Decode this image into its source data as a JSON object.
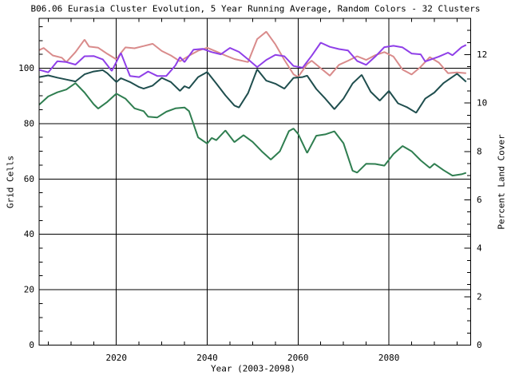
{
  "window": {
    "background": "#ffffff",
    "text_color": "#000000"
  },
  "chart_data": {
    "type": "line",
    "title": "B06.06 Eurasia Cluster Evolution, 5 Year Running Average, Random Colors - 32 Clusters",
    "xlabel": "Year (2003-2098)",
    "ylabel_left": "Grid Cells",
    "ylabel_right": "Percent Land Cover",
    "x_range": [
      2003,
      2098
    ],
    "y_left_range": [
      0,
      118
    ],
    "y_right_range": [
      0,
      13.5
    ],
    "x_major_ticks": [
      2020,
      2040,
      2060,
      2080
    ],
    "x_minor_step": 5,
    "y_left_major_ticks": [
      0,
      20,
      40,
      60,
      80,
      100
    ],
    "y_left_minor_step": 5,
    "y_right_major_ticks": [
      0,
      2,
      4,
      6,
      8,
      10,
      12
    ],
    "y_right_minor_step": 0.5,
    "grid": {
      "vertical_at": [
        2020,
        2040,
        2060,
        2080
      ],
      "horizontal_at": [
        20,
        40,
        60,
        80,
        100
      ]
    },
    "axis_color": "#000000",
    "legend": "none",
    "series": [
      {
        "name": "salmon",
        "color": "#D98B8B",
        "axis": "left",
        "x": [
          2003,
          2004,
          2006,
          2008,
          2009,
          2011,
          2013,
          2014,
          2016,
          2018,
          2020,
          2021,
          2022,
          2024,
          2026,
          2028,
          2030,
          2032,
          2034,
          2036,
          2038,
          2040,
          2042,
          2044,
          2046,
          2049,
          2051,
          2053,
          2055,
          2057,
          2059,
          2060,
          2062,
          2063,
          2065,
          2067,
          2069,
          2071,
          2073,
          2075,
          2077,
          2079,
          2081,
          2083,
          2085,
          2087,
          2089,
          2091,
          2093,
          2095,
          2097
        ],
        "values": [
          106.5,
          107.3,
          104.6,
          103.8,
          102.2,
          105.8,
          110.3,
          107.8,
          107.4,
          105.2,
          103.2,
          105.5,
          107.5,
          107.2,
          108.0,
          108.8,
          106.2,
          104.6,
          102.5,
          104.5,
          106.3,
          107.4,
          106.0,
          104.6,
          103.3,
          102.2,
          110.5,
          113.2,
          108.6,
          103.0,
          97.8,
          96.8,
          101.5,
          102.7,
          100.0,
          97.3,
          101.2,
          102.7,
          104.3,
          103.0,
          104.7,
          105.8,
          104.2,
          99.5,
          97.7,
          100.5,
          104.0,
          102.0,
          98.2,
          98.5,
          98.2
        ]
      },
      {
        "name": "violet",
        "color": "#8F3FE8",
        "axis": "left",
        "x": [
          2003,
          2005,
          2007,
          2009,
          2011,
          2013,
          2015,
          2017,
          2019,
          2021,
          2023,
          2025,
          2027,
          2029,
          2031,
          2033,
          2034,
          2035,
          2037,
          2039,
          2041,
          2043,
          2045,
          2047,
          2049,
          2051,
          2053,
          2055,
          2057,
          2059,
          2061,
          2063,
          2065,
          2067,
          2069,
          2071,
          2073,
          2075,
          2077,
          2079,
          2081,
          2083,
          2085,
          2087,
          2088,
          2091,
          2093,
          2094,
          2096,
          2097
        ],
        "values": [
          99.4,
          98.5,
          102.5,
          102.2,
          101.3,
          104.3,
          104.4,
          103.2,
          99.0,
          105.5,
          97.2,
          96.8,
          98.8,
          97.2,
          97.2,
          101.0,
          104.0,
          102.2,
          106.7,
          107.0,
          105.8,
          105.0,
          107.3,
          105.9,
          103.2,
          100.4,
          103.0,
          104.8,
          104.3,
          100.8,
          100.2,
          104.5,
          109.2,
          107.7,
          106.9,
          106.4,
          102.6,
          101.2,
          104.2,
          107.6,
          108.1,
          107.5,
          105.3,
          105.0,
          102.4,
          104.2,
          105.6,
          104.7,
          107.6,
          108.4
        ]
      },
      {
        "name": "dark-teal",
        "color": "#1F4E4E",
        "axis": "left",
        "x": [
          2003,
          2005,
          2007,
          2009,
          2011,
          2013,
          2015,
          2017,
          2018,
          2020,
          2021,
          2023,
          2025,
          2026,
          2028,
          2030,
          2032,
          2034,
          2035,
          2036,
          2038,
          2040,
          2042,
          2044,
          2046,
          2047,
          2049,
          2051,
          2053,
          2055,
          2057,
          2059,
          2061,
          2062,
          2064,
          2066,
          2068,
          2070,
          2072,
          2074,
          2076,
          2078,
          2080,
          2082,
          2084,
          2086,
          2088,
          2090,
          2092,
          2095,
          2097
        ],
        "values": [
          96.8,
          97.4,
          96.6,
          95.9,
          95.2,
          97.8,
          98.8,
          99.3,
          98.2,
          95.0,
          96.4,
          95.0,
          93.2,
          92.6,
          93.7,
          96.5,
          95.0,
          91.8,
          93.5,
          92.8,
          96.8,
          98.6,
          94.5,
          90.2,
          86.5,
          85.8,
          91.0,
          99.6,
          95.5,
          94.4,
          92.6,
          96.5,
          96.8,
          97.3,
          92.5,
          89.0,
          85.2,
          89.0,
          94.5,
          97.6,
          91.5,
          88.3,
          91.8,
          87.3,
          85.9,
          83.9,
          89.0,
          91.2,
          94.6,
          98.0,
          95.1
        ]
      },
      {
        "name": "green",
        "color": "#2F7E50",
        "axis": "left",
        "x": [
          2003,
          2005,
          2007,
          2009,
          2011,
          2013,
          2015,
          2016,
          2018,
          2020,
          2022,
          2024,
          2026,
          2027,
          2029,
          2031,
          2033,
          2035,
          2036,
          2038,
          2040,
          2041,
          2042,
          2044,
          2046,
          2048,
          2050,
          2052,
          2054,
          2056,
          2058,
          2059,
          2060,
          2062,
          2064,
          2066,
          2068,
          2070,
          2072,
          2073,
          2075,
          2077,
          2079,
          2081,
          2083,
          2085,
          2087,
          2089,
          2090,
          2092,
          2094,
          2096,
          2097
        ],
        "values": [
          86.8,
          89.8,
          91.3,
          92.3,
          94.6,
          91.2,
          87.0,
          85.4,
          87.8,
          90.8,
          89.0,
          85.5,
          84.5,
          82.5,
          82.2,
          84.3,
          85.5,
          85.8,
          84.5,
          75.0,
          72.8,
          74.8,
          74.0,
          77.5,
          73.3,
          75.8,
          73.4,
          70.0,
          67.0,
          70.0,
          77.3,
          78.2,
          76.3,
          69.4,
          75.6,
          76.1,
          77.2,
          72.9,
          63.0,
          62.3,
          65.5,
          65.4,
          64.8,
          69.0,
          71.9,
          70.0,
          66.7,
          64.0,
          65.5,
          63.2,
          61.2,
          61.7,
          62.2
        ]
      }
    ]
  }
}
